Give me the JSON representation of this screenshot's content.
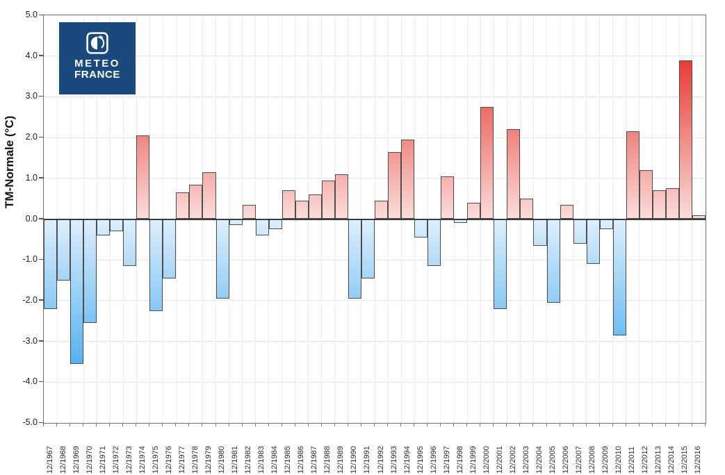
{
  "logo": {
    "line1": "METEO",
    "line2": "FRANCE"
  },
  "axes": {
    "y_label": "TM-Normale (°C)",
    "y_tick_labels": [
      "5.0",
      "4.0",
      "3.0",
      "2.0",
      "1.0",
      "0.0",
      "-1.0",
      "-2.0",
      "-3.0",
      "-4.0",
      "-5.0"
    ]
  },
  "chart_data": {
    "type": "bar",
    "title": "",
    "xlabel": "",
    "ylabel": "TM-Normale (°C)",
    "ylim": [
      -5.0,
      5.0
    ],
    "y_tick_step": 1.0,
    "grid": true,
    "legend": "none",
    "categories": [
      "12/1967",
      "12/1968",
      "12/1969",
      "12/1970",
      "12/1971",
      "12/1972",
      "12/1973",
      "12/1974",
      "12/1975",
      "12/1976",
      "12/1977",
      "12/1978",
      "12/1979",
      "12/1980",
      "12/1981",
      "12/1982",
      "12/1983",
      "12/1984",
      "12/1985",
      "12/1986",
      "12/1987",
      "12/1988",
      "12/1989",
      "12/1990",
      "12/1991",
      "12/1992",
      "12/1993",
      "12/1994",
      "12/1995",
      "12/1996",
      "12/1997",
      "12/1998",
      "12/1999",
      "12/2000",
      "12/2001",
      "12/2002",
      "12/2003",
      "12/2004",
      "12/2005",
      "12/2006",
      "12/2007",
      "12/2008",
      "12/2009",
      "12/2010",
      "12/2011",
      "12/2012",
      "12/2013",
      "12/2014",
      "12/2015",
      "12/2016"
    ],
    "values": [
      -2.2,
      -1.5,
      -3.55,
      -2.55,
      -0.4,
      -0.3,
      -1.15,
      2.05,
      -2.25,
      -1.45,
      0.65,
      0.85,
      1.15,
      -1.95,
      -0.15,
      0.35,
      -0.4,
      -0.25,
      0.7,
      0.45,
      0.6,
      0.95,
      1.1,
      -1.95,
      -1.45,
      0.45,
      1.65,
      1.95,
      -0.45,
      -1.15,
      1.05,
      -0.1,
      0.4,
      2.75,
      -2.2,
      2.2,
      0.5,
      -0.65,
      -2.05,
      0.35,
      -0.6,
      -1.1,
      -0.25,
      -2.85,
      2.15,
      1.2,
      0.7,
      0.75,
      3.9,
      0.1
    ],
    "colors": {
      "positive_top": "#e6392f",
      "positive_near_zero": "#fbdcda",
      "negative_deep": "#55b1f1",
      "negative_near_zero": "#ddeffc",
      "bar_border": "#4d4d4d",
      "zero_line": "#3a3a3a",
      "logo_background": "#1a4a7d"
    }
  }
}
